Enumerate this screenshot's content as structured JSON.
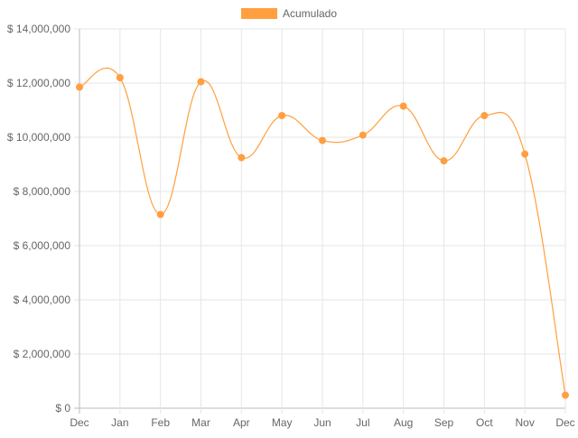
{
  "chart_data": {
    "type": "line",
    "categories": [
      "Dec",
      "Jan",
      "Feb",
      "Mar",
      "Apr",
      "May",
      "Jun",
      "Jul",
      "Aug",
      "Sep",
      "Oct",
      "Nov",
      "Dec"
    ],
    "series": [
      {
        "name": "Acumulado",
        "color": "#ff9f40",
        "values": [
          11850000,
          12200000,
          7150000,
          12050000,
          9250000,
          10800000,
          9880000,
          10080000,
          11150000,
          9130000,
          10800000,
          9380000,
          480000
        ]
      }
    ],
    "y_ticks": [
      "$ 0",
      "$ 2,000,000",
      "$ 4,000,000",
      "$ 6,000,000",
      "$ 8,000,000",
      "$ 10,000,000",
      "$ 12,000,000",
      "$ 14,000,000"
    ],
    "ylim": [
      0,
      14000000
    ],
    "grid": true,
    "legend_position": "top-center",
    "curve": "smooth"
  }
}
